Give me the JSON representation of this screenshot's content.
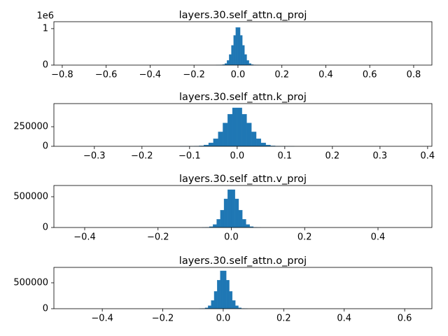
{
  "chart_data": [
    {
      "type": "histogram",
      "title": "layers.30.self_attn.q_proj",
      "color": "#1f77b4",
      "bins": [
        -0.1,
        -0.09,
        -0.08,
        -0.07,
        -0.06,
        -0.05,
        -0.04,
        -0.03,
        -0.02,
        -0.01,
        0,
        0.01,
        0.02,
        0.03,
        0.04,
        0.05,
        0.06,
        0.07,
        0.08,
        0.09,
        0.1
      ],
      "counts": [
        100,
        600,
        3000,
        13000,
        45000,
        127000,
        290000,
        540000,
        815000,
        1030000,
        1030000,
        815000,
        540000,
        290000,
        127000,
        45000,
        13000,
        3000,
        600,
        100
      ],
      "xlim": [
        -0.838,
        0.883
      ],
      "ylim": [
        0,
        1190000
      ],
      "xticks": [
        {
          "value": -0.8,
          "label": "−0.8"
        },
        {
          "value": -0.6,
          "label": "−0.6"
        },
        {
          "value": -0.4,
          "label": "−0.4"
        },
        {
          "value": -0.2,
          "label": "−0.2"
        },
        {
          "value": 0,
          "label": "0.0"
        },
        0.2,
        0.4,
        0.6,
        0.8
      ],
      "yticks": [
        0,
        {
          "value": 1000000,
          "label": "1"
        }
      ],
      "y_offset_text": "1e6"
    },
    {
      "type": "histogram",
      "title": "layers.30.self_attn.k_proj",
      "color": "#1f77b4",
      "bins": [
        -0.12,
        -0.11,
        -0.1,
        -0.09,
        -0.08,
        -0.07,
        -0.06,
        -0.05,
        -0.04,
        -0.03,
        -0.02,
        -0.01,
        0,
        0.01,
        0.02,
        0.03,
        0.04,
        0.05,
        0.06,
        0.07,
        0.08,
        0.09,
        0.1,
        0.11,
        0.12
      ],
      "counts": [
        15,
        80,
        350,
        1500,
        5500,
        17000,
        44000,
        97000,
        184000,
        298000,
        410000,
        491000,
        491000,
        410000,
        298000,
        184000,
        97000,
        44000,
        17000,
        5500,
        1500,
        350,
        80,
        15
      ],
      "xlim": [
        -0.385,
        0.409
      ],
      "ylim": [
        0,
        545000
      ],
      "xticks": [
        {
          "value": -0.3,
          "label": "−0.3"
        },
        {
          "value": -0.2,
          "label": "−0.2"
        },
        {
          "value": -0.1,
          "label": "−0.1"
        },
        {
          "value": 0,
          "label": "0.0"
        },
        0.1,
        0.2,
        0.3,
        0.4
      ],
      "yticks": [
        0,
        250000
      ]
    },
    {
      "type": "histogram",
      "title": "layers.30.self_attn.v_proj",
      "color": "#1f77b4",
      "bins": [
        -0.08,
        -0.07,
        -0.06,
        -0.05,
        -0.04,
        -0.03,
        -0.02,
        -0.01,
        0,
        0.01,
        0.02,
        0.03,
        0.04,
        0.05,
        0.06,
        0.07,
        0.08
      ],
      "counts": [
        550,
        3100,
        14000,
        49000,
        133000,
        281000,
        465000,
        614000,
        614000,
        465000,
        281000,
        133000,
        49000,
        14000,
        3100,
        550
      ],
      "xlim": [
        -0.484,
        0.547
      ],
      "ylim": [
        0,
        682000
      ],
      "xticks": [
        {
          "value": -0.4,
          "label": "−0.4"
        },
        {
          "value": -0.2,
          "label": "−0.2"
        },
        {
          "value": 0,
          "label": "0.0"
        },
        0.2,
        0.4
      ],
      "yticks": [
        0,
        500000
      ]
    },
    {
      "type": "histogram",
      "title": "layers.30.self_attn.o_proj",
      "color": "#1f77b4",
      "bins": [
        -0.08,
        -0.07,
        -0.06,
        -0.05,
        -0.04,
        -0.03,
        -0.02,
        -0.01,
        0,
        0.01,
        0.02,
        0.03,
        0.04,
        0.05,
        0.06,
        0.07,
        0.08
      ],
      "counts": [
        650,
        3700,
        17000,
        58000,
        158000,
        334000,
        550000,
        730000,
        730000,
        550000,
        334000,
        158000,
        58000,
        17000,
        3700,
        650
      ],
      "xlim": [
        -0.56,
        0.69
      ],
      "ylim": [
        0,
        797000
      ],
      "xticks": [
        {
          "value": -0.4,
          "label": "−0.4"
        },
        {
          "value": -0.2,
          "label": "−0.2"
        },
        {
          "value": 0,
          "label": "0.0"
        },
        0.2,
        0.4,
        0.6
      ],
      "yticks": [
        0,
        500000
      ]
    }
  ]
}
